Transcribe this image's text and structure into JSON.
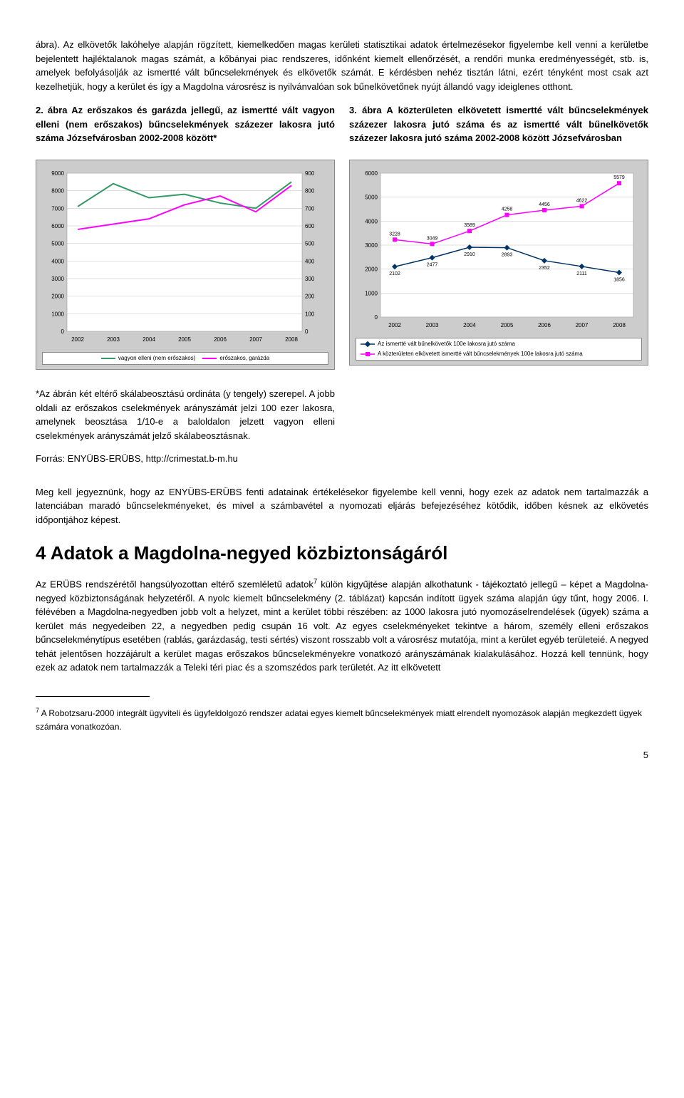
{
  "para1": "ábra). Az elkövetők lakóhelye alapján rögzített, kiemelkedően magas kerületi statisztikai adatok értelmezésekor figyelembe kell venni a kerületbe bejelentett hajléktalanok magas számát, a kőbányai piac rendszeres, időnként kiemelt ellenőrzését, a rendőri munka eredményességét, stb. is, amelyek befolyásolják az ismertté vált bűncselekmények és elkövetők számát. E kérdésben nehéz tisztán látni, ezért tényként most csak azt kezelhetjük, hogy a kerület és így a Magdolna városrész is nyilvánvalóan sok bűnelkövetőnek nyújt állandó vagy ideiglenes otthont.",
  "caption_left": "2. ábra Az erőszakos és garázda jellegű, az ismertté vált vagyon elleni (nem erőszakos) bűncselekmények százezer lakosra jutó száma Józsefvárosban 2002-2008 között*",
  "caption_right": "3. ábra A közterületen elkövetett ismertté vált bűncselekmények százezer lakosra jutó száma és az ismertté vált bűnelkövetők százezer lakosra jutó száma 2002-2008 között Józsefvárosban",
  "chart_left": {
    "type": "line-dual-axis",
    "background_color": "#cccccc",
    "plot_bg": "#ffffff",
    "grid_color": "#c0c0c0",
    "font_size_axis": 8,
    "x_labels": [
      "2002",
      "2003",
      "2004",
      "2005",
      "2006",
      "2007",
      "2008"
    ],
    "y_left": {
      "min": 0,
      "max": 9000,
      "step": 1000,
      "labels": [
        "0",
        "1000",
        "2000",
        "3000",
        "4000",
        "5000",
        "6000",
        "7000",
        "8000",
        "9000"
      ]
    },
    "y_right": {
      "min": 0,
      "max": 900,
      "step": 100,
      "labels": [
        "0",
        "100",
        "200",
        "300",
        "400",
        "500",
        "600",
        "700",
        "800",
        "900"
      ]
    },
    "series1": {
      "name": "vagyon elleni (nem erőszakos)",
      "color": "#339966",
      "values": [
        7100,
        8400,
        7600,
        7800,
        7300,
        7000,
        8500
      ]
    },
    "series2": {
      "name": "erőszakos, garázda",
      "color": "#ff00ff",
      "values": [
        580,
        610,
        640,
        720,
        770,
        680,
        830
      ]
    },
    "legend": [
      "vagyon elleni (nem erőszakos)",
      "erőszakos, garázda"
    ]
  },
  "chart_right": {
    "type": "line-with-labels",
    "background_color": "#cccccc",
    "plot_bg": "#ffffff",
    "grid_color": "#c0c0c0",
    "font_size_axis": 8,
    "label_font_size": 7,
    "x_labels": [
      "2002",
      "2003",
      "2004",
      "2005",
      "2006",
      "2007",
      "2008"
    ],
    "y": {
      "min": 0,
      "max": 6000,
      "step": 1000,
      "labels": [
        "0",
        "1000",
        "2000",
        "3000",
        "4000",
        "5000",
        "6000"
      ]
    },
    "series1": {
      "name": "Az ismertté vált bűnelkövetők 100e lakosra jutó száma",
      "color": "#003366",
      "marker": "diamond",
      "values": [
        2102,
        2477,
        2910,
        2893,
        2352,
        2111,
        1856
      ]
    },
    "series2": {
      "name": "A közterületen elkövetett ismertté vált bűncselekmények 100e lakosra jutó száma",
      "color": "#ff00ff",
      "marker": "square",
      "values": [
        3228,
        3049,
        3589,
        4258,
        4456,
        4622,
        5579
      ]
    },
    "legend": [
      "Az ismertté vált bűnelkövetők 100e lakosra jutó száma",
      "A közterületen elkövetett ismertté vált bűncselekmények 100e lakosra jutó száma"
    ]
  },
  "note": "*Az ábrán két eltérő skálabeosztású ordináta (y tengely) szerepel. A jobb oldali az erőszakos cselekmények arányszámát jelzi 100 ezer lakosra, amelynek beosztása 1/10-e a baloldalon jelzett vagyon elleni cselekmények arányszámát jelző skálabeosztásnak.",
  "source": "Forrás: ENYÜBS-ERÜBS, http://crimestat.b-m.hu",
  "para2": "Meg kell jegyeznünk, hogy az ENYÜBS-ERÜBS fenti adatainak értékelésekor figyelembe kell venni, hogy ezek az adatok nem tartalmazzák a latenciában maradó bűncselekményeket, és mivel a számbavétel a nyomozati eljárás befejezéséhez kötődik, időben késnek az elkövetés időpontjához képest.",
  "section_title": "4  Adatok a Magdolna-negyed közbiztonságáról",
  "para3_a": "Az ERÜBS rendszérétől hangsúlyozottan eltérő szemléletű adatok",
  "para3_b": " külön kigyűjtése alapján alkothatunk - tájékoztató jellegű – képet a Magdolna-negyed közbiztonságának helyzetéről. A nyolc kiemelt bűncselekmény (2. táblázat) kapcsán indított ügyek száma alapján úgy tűnt, hogy 2006. I. félévében a Magdolna-negyedben jobb volt a helyzet, mint a kerület többi részében: az 1000 lakosra jutó nyomozáselrendelések (ügyek) száma a kerület más negyedeiben 22, a negyedben pedig csupán 16 volt. Az egyes cselekményeket tekintve a három, személy elleni erőszakos bűncselekménytípus esetében (rablás, garázdaság, testi sértés) viszont rosszabb volt a városrész mutatója, mint a kerület egyéb területeié. A negyed tehát jelentősen hozzájárult a kerület magas erőszakos bűncselekményekre vonatkozó arányszámának kialakulásához. Hozzá kell tennünk, hogy ezek az adatok nem tartalmazzák a Teleki téri piac és a szomszédos park területét. Az itt elkövetett",
  "footnote_marker": "7",
  "footnote": " A Robotzsaru-2000 integrált ügyviteli és ügyfeldolgozó rendszer adatai egyes kiemelt bűncselekmények miatt elrendelt nyomozások alapján megkezdett ügyek számára vonatkozóan.",
  "page_number": "5"
}
